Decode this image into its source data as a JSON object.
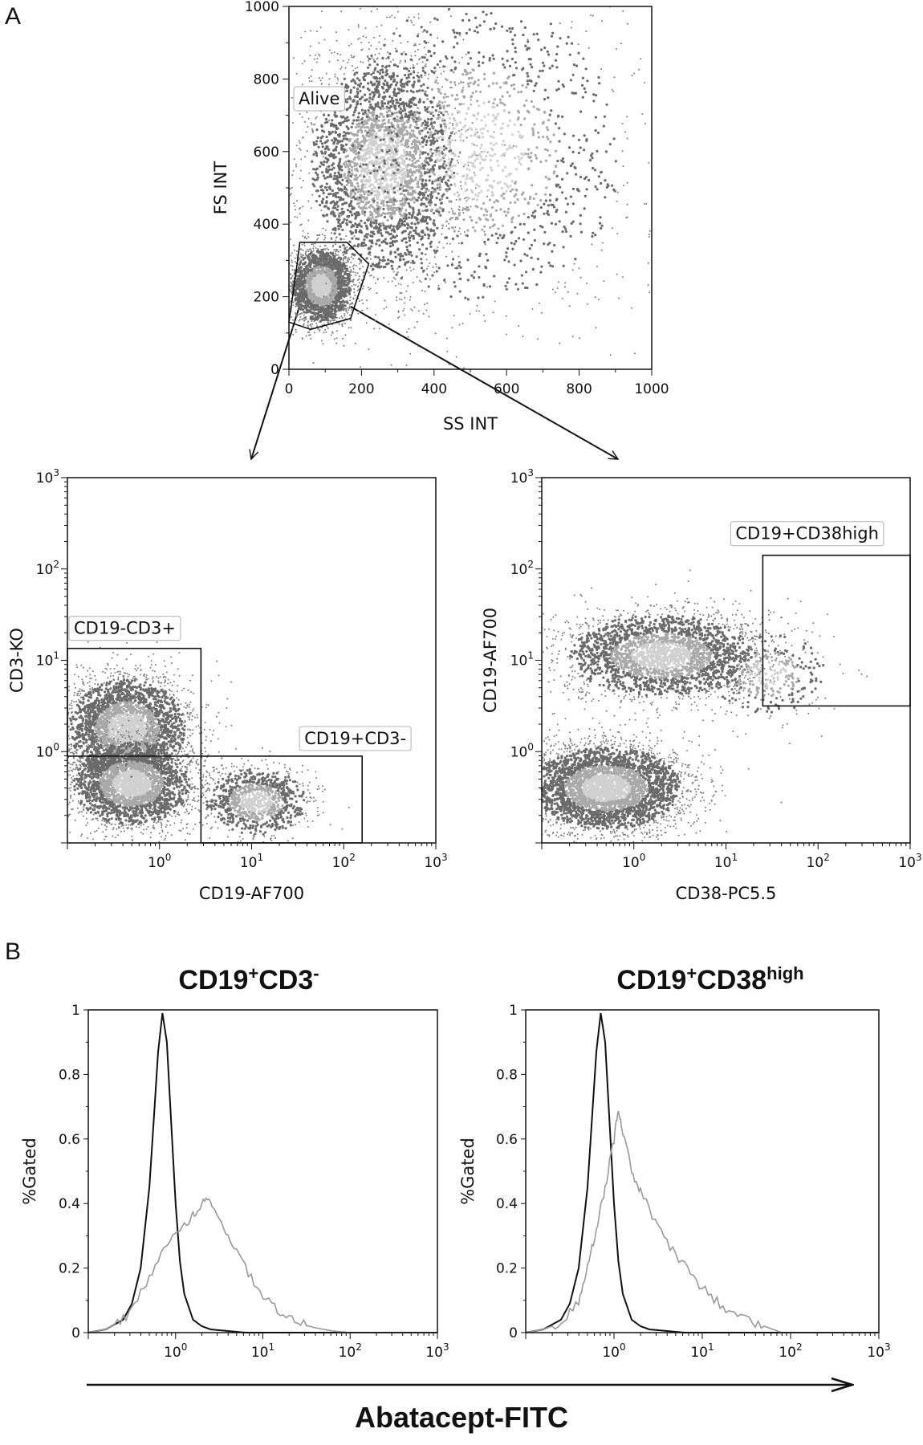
{
  "panels": {
    "a_label": "A",
    "b_label": "B"
  },
  "hist_titles": {
    "left": {
      "base": "CD19",
      "sup1": "+",
      "mid": "CD3",
      "sup2": "-"
    },
    "right": {
      "base": "CD19",
      "sup1": "+",
      "mid": "CD38",
      "sup2": "high"
    }
  },
  "shared_xlabel": "Abatacept-FITC",
  "chart_data": [
    {
      "id": "scatter-alive",
      "type": "scatter",
      "xlabel": "SS INT",
      "ylabel": "FS INT",
      "xlim": [
        0,
        1000
      ],
      "ylim": [
        0,
        1000
      ],
      "xticks": [
        "0",
        "200",
        "400",
        "600",
        "800",
        "1000"
      ],
      "yticks": [
        "0",
        "200",
        "400",
        "600",
        "800",
        "1000"
      ],
      "gates": [
        {
          "name": "Alive",
          "polygon": [
            [
              30,
              350
            ],
            [
              160,
              350
            ],
            [
              220,
              290
            ],
            [
              170,
              140
            ],
            [
              60,
              110
            ],
            [
              0,
              130
            ],
            [
              20,
              270
            ]
          ]
        }
      ],
      "populations": [
        {
          "x": 90,
          "y": 230,
          "sx": 45,
          "sy": 55,
          "weight": 0.32
        },
        {
          "x": 260,
          "y": 560,
          "sx": 110,
          "sy": 160,
          "weight": 0.45
        },
        {
          "x": 520,
          "y": 600,
          "sx": 220,
          "sy": 230,
          "weight": 0.23
        }
      ]
    },
    {
      "id": "scatter-cd3",
      "type": "scatter",
      "xlabel": "CD19-AF700",
      "ylabel": "CD3-KO",
      "xscale": "log",
      "yscale": "log",
      "xlim": [
        -1,
        3
      ],
      "ylim": [
        -1,
        3
      ],
      "xticks": [
        "10^0",
        "10^1",
        "10^2",
        "10^3"
      ],
      "yticks": [
        "10^0",
        "10^1",
        "10^2",
        "10^3"
      ],
      "gates": [
        {
          "name": "CD19-CD3+",
          "rect": [
            -1,
            0.45,
            -0.05,
            1.13
          ]
        },
        {
          "name": "CD19+CD3-",
          "rect": [
            0.45,
            2.2,
            -1,
            -0.05
          ]
        }
      ],
      "populations": [
        {
          "x": -0.35,
          "y": 0.25,
          "sx": 0.35,
          "sy": 0.3,
          "weight": 0.45
        },
        {
          "x": -0.3,
          "y": -0.35,
          "sx": 0.35,
          "sy": 0.25,
          "weight": 0.4
        },
        {
          "x": 1.05,
          "y": -0.55,
          "sx": 0.3,
          "sy": 0.2,
          "weight": 0.15
        }
      ]
    },
    {
      "id": "scatter-cd38",
      "type": "scatter",
      "xlabel": "CD38-PC5.5",
      "ylabel": "CD19-AF700",
      "xscale": "log",
      "yscale": "log",
      "xlim": [
        -1,
        3
      ],
      "ylim": [
        -1,
        3
      ],
      "xticks": [
        "10^0",
        "10^1",
        "10^2",
        "10^3"
      ],
      "yticks": [
        "10^0",
        "10^1",
        "10^2",
        "10^3"
      ],
      "gates": [
        {
          "name": "CD19+CD38high",
          "rect": [
            1.4,
            3,
            0.5,
            2.15
          ]
        }
      ],
      "populations": [
        {
          "x": -0.3,
          "y": -0.4,
          "sx": 0.45,
          "sy": 0.25,
          "weight": 0.55
        },
        {
          "x": 0.3,
          "y": 1.05,
          "sx": 0.55,
          "sy": 0.25,
          "weight": 0.4
        },
        {
          "x": 1.45,
          "y": 0.85,
          "sx": 0.35,
          "sy": 0.25,
          "weight": 0.05
        }
      ]
    },
    {
      "id": "hist-cd3",
      "type": "line",
      "ylabel": "%Gated",
      "xscale": "log",
      "xlim": [
        -1,
        3
      ],
      "ylim": [
        0,
        1
      ],
      "xticks": [
        "10^0",
        "10^1",
        "10^2",
        "10^3"
      ],
      "yticks": [
        "0",
        "0.2",
        "0.4",
        "0.6",
        "0.8",
        "1"
      ],
      "series": [
        {
          "role": "control",
          "color": "#111111",
          "x": [
            -1,
            -0.8,
            -0.6,
            -0.5,
            -0.4,
            -0.3,
            -0.25,
            -0.2,
            -0.15,
            -0.1,
            -0.05,
            0,
            0.05,
            0.1,
            0.2,
            0.3,
            0.4,
            0.6,
            0.8,
            3
          ],
          "y": [
            0,
            0.01,
            0.04,
            0.09,
            0.2,
            0.45,
            0.66,
            0.87,
            0.99,
            0.9,
            0.65,
            0.4,
            0.22,
            0.12,
            0.04,
            0.02,
            0.01,
            0.005,
            0,
            0
          ]
        },
        {
          "role": "stained",
          "color": "#999999",
          "x": [
            -1,
            -0.8,
            -0.6,
            -0.4,
            -0.2,
            0,
            0.15,
            0.25,
            0.35,
            0.45,
            0.6,
            0.8,
            1,
            1.2,
            1.4,
            1.6,
            1.8,
            2,
            3
          ],
          "y": [
            0,
            0.01,
            0.04,
            0.12,
            0.23,
            0.3,
            0.35,
            0.38,
            0.41,
            0.38,
            0.3,
            0.2,
            0.11,
            0.06,
            0.03,
            0.015,
            0.005,
            0,
            0
          ]
        }
      ]
    },
    {
      "id": "hist-cd38",
      "type": "line",
      "ylabel": "%Gated",
      "xscale": "log",
      "xlim": [
        -1,
        3
      ],
      "ylim": [
        0,
        1
      ],
      "xticks": [
        "10^0",
        "10^1",
        "10^2",
        "10^3"
      ],
      "yticks": [
        "0",
        "0.2",
        "0.4",
        "0.6",
        "0.8",
        "1"
      ],
      "series": [
        {
          "role": "control",
          "color": "#111111",
          "x": [
            -1,
            -0.8,
            -0.6,
            -0.5,
            -0.4,
            -0.3,
            -0.25,
            -0.2,
            -0.15,
            -0.1,
            -0.05,
            0,
            0.05,
            0.1,
            0.2,
            0.3,
            0.4,
            0.6,
            0.8,
            3
          ],
          "y": [
            0,
            0.01,
            0.04,
            0.09,
            0.2,
            0.45,
            0.66,
            0.87,
            0.99,
            0.9,
            0.65,
            0.4,
            0.22,
            0.12,
            0.04,
            0.02,
            0.01,
            0.005,
            0,
            0
          ]
        },
        {
          "role": "stained",
          "color": "#999999",
          "x": [
            -1,
            -0.8,
            -0.6,
            -0.4,
            -0.3,
            -0.2,
            -0.1,
            0,
            0.05,
            0.1,
            0.2,
            0.3,
            0.5,
            0.7,
            0.9,
            1.1,
            1.3,
            1.5,
            1.7,
            1.9,
            3
          ],
          "y": [
            0,
            0.01,
            0.03,
            0.1,
            0.2,
            0.32,
            0.45,
            0.6,
            0.7,
            0.62,
            0.5,
            0.44,
            0.32,
            0.24,
            0.17,
            0.11,
            0.07,
            0.04,
            0.02,
            0,
            0
          ]
        }
      ]
    }
  ]
}
